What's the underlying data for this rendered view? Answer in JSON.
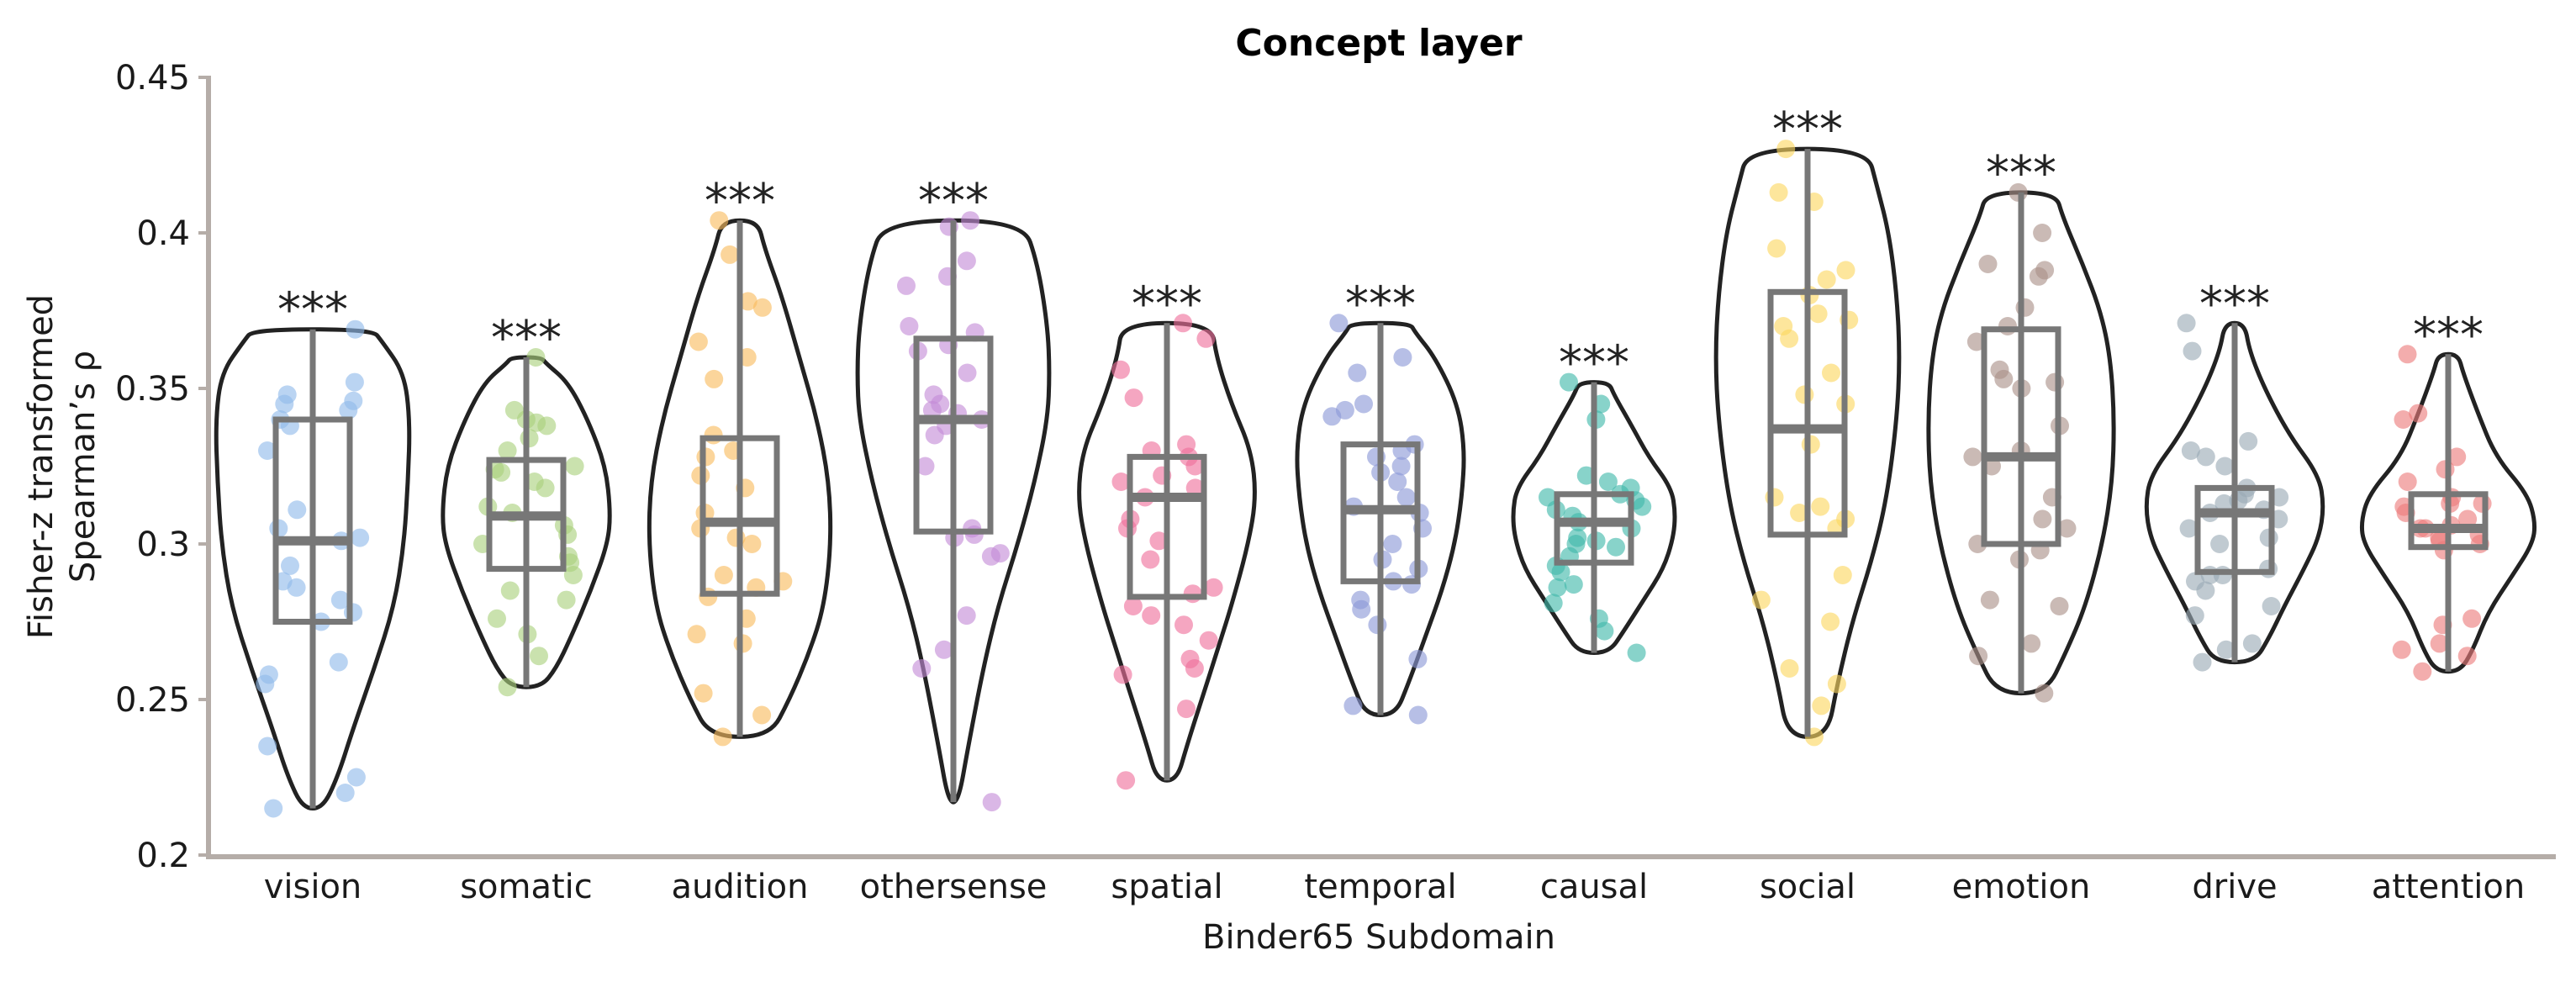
{
  "chart_data": {
    "type": "violin",
    "title": "Concept layer",
    "xlabel": "Binder65 Subdomain",
    "ylabel_line1": "Fisher-z transformed",
    "ylabel_line2": "Spearman’s ρ",
    "ylim": [
      0.2,
      0.45
    ],
    "yticks": [
      0.2,
      0.25,
      0.3,
      0.35,
      0.4,
      0.45
    ],
    "ytick_labels": [
      "0.2",
      "0.25",
      "0.3",
      "0.35",
      "0.4",
      "0.45"
    ],
    "grid": false,
    "categories": [
      {
        "name": "vision",
        "color": "#8fb9ea",
        "sig": "***",
        "min": 0.215,
        "max": 0.369,
        "q1": 0.275,
        "median": 0.301,
        "q3": 0.34,
        "profile": [
          [
            0.215,
            0.1
          ],
          [
            0.225,
            0.25
          ],
          [
            0.24,
            0.4
          ],
          [
            0.26,
            0.62
          ],
          [
            0.28,
            0.82
          ],
          [
            0.3,
            0.92
          ],
          [
            0.32,
            0.96
          ],
          [
            0.34,
            0.98
          ],
          [
            0.355,
            0.92
          ],
          [
            0.365,
            0.7
          ],
          [
            0.369,
            0.6
          ]
        ],
        "points": [
          0.215,
          0.22,
          0.225,
          0.235,
          0.255,
          0.258,
          0.262,
          0.275,
          0.278,
          0.282,
          0.286,
          0.288,
          0.293,
          0.301,
          0.302,
          0.305,
          0.311,
          0.33,
          0.338,
          0.34,
          0.343,
          0.345,
          0.346,
          0.348,
          0.352,
          0.369
        ]
      },
      {
        "name": "somatic",
        "color": "#a9d17c",
        "sig": "***",
        "min": 0.254,
        "max": 0.36,
        "q1": 0.292,
        "median": 0.309,
        "q3": 0.327,
        "profile": [
          [
            0.254,
            0.15
          ],
          [
            0.26,
            0.3
          ],
          [
            0.27,
            0.45
          ],
          [
            0.285,
            0.65
          ],
          [
            0.3,
            0.82
          ],
          [
            0.31,
            0.85
          ],
          [
            0.325,
            0.8
          ],
          [
            0.34,
            0.62
          ],
          [
            0.352,
            0.42
          ],
          [
            0.358,
            0.2
          ],
          [
            0.36,
            0.15
          ]
        ],
        "points": [
          0.254,
          0.264,
          0.271,
          0.276,
          0.282,
          0.285,
          0.29,
          0.294,
          0.296,
          0.3,
          0.303,
          0.306,
          0.31,
          0.312,
          0.318,
          0.32,
          0.323,
          0.324,
          0.325,
          0.33,
          0.334,
          0.338,
          0.339,
          0.34,
          0.343,
          0.36
        ]
      },
      {
        "name": "audition",
        "color": "#f9bb5e",
        "sig": "***",
        "min": 0.238,
        "max": 0.404,
        "q1": 0.284,
        "median": 0.307,
        "q3": 0.334,
        "profile": [
          [
            0.238,
            0.3
          ],
          [
            0.25,
            0.5
          ],
          [
            0.265,
            0.7
          ],
          [
            0.28,
            0.85
          ],
          [
            0.3,
            0.92
          ],
          [
            0.32,
            0.9
          ],
          [
            0.34,
            0.78
          ],
          [
            0.36,
            0.6
          ],
          [
            0.38,
            0.42
          ],
          [
            0.395,
            0.25
          ],
          [
            0.404,
            0.18
          ]
        ],
        "points": [
          0.238,
          0.245,
          0.252,
          0.268,
          0.271,
          0.276,
          0.283,
          0.286,
          0.288,
          0.29,
          0.3,
          0.302,
          0.305,
          0.31,
          0.318,
          0.322,
          0.328,
          0.33,
          0.335,
          0.353,
          0.36,
          0.365,
          0.376,
          0.378,
          0.393,
          0.404
        ]
      },
      {
        "name": "othersense",
        "color": "#c38ad6",
        "sig": "***",
        "min": 0.217,
        "max": 0.404,
        "q1": 0.304,
        "median": 0.34,
        "q3": 0.366,
        "profile": [
          [
            0.217,
            0.05
          ],
          [
            0.235,
            0.15
          ],
          [
            0.26,
            0.3
          ],
          [
            0.28,
            0.45
          ],
          [
            0.3,
            0.65
          ],
          [
            0.32,
            0.82
          ],
          [
            0.34,
            0.95
          ],
          [
            0.355,
            0.97
          ],
          [
            0.37,
            0.95
          ],
          [
            0.39,
            0.85
          ],
          [
            0.404,
            0.7
          ]
        ],
        "points": [
          0.217,
          0.26,
          0.266,
          0.277,
          0.296,
          0.297,
          0.302,
          0.303,
          0.305,
          0.325,
          0.335,
          0.338,
          0.34,
          0.342,
          0.343,
          0.345,
          0.348,
          0.355,
          0.362,
          0.364,
          0.368,
          0.37,
          0.383,
          0.386,
          0.391,
          0.402,
          0.404
        ]
      },
      {
        "name": "spatial",
        "color": "#ef6f9b",
        "sig": "***",
        "min": 0.224,
        "max": 0.371,
        "q1": 0.283,
        "median": 0.315,
        "q3": 0.328,
        "profile": [
          [
            0.224,
            0.1
          ],
          [
            0.235,
            0.2
          ],
          [
            0.25,
            0.35
          ],
          [
            0.265,
            0.5
          ],
          [
            0.28,
            0.65
          ],
          [
            0.3,
            0.82
          ],
          [
            0.315,
            0.9
          ],
          [
            0.33,
            0.85
          ],
          [
            0.345,
            0.65
          ],
          [
            0.36,
            0.5
          ],
          [
            0.371,
            0.45
          ]
        ],
        "points": [
          0.224,
          0.247,
          0.258,
          0.26,
          0.263,
          0.269,
          0.274,
          0.277,
          0.28,
          0.284,
          0.286,
          0.295,
          0.301,
          0.305,
          0.308,
          0.315,
          0.318,
          0.32,
          0.322,
          0.325,
          0.328,
          0.33,
          0.332,
          0.347,
          0.356,
          0.366,
          0.371
        ]
      },
      {
        "name": "temporal",
        "color": "#8b97d6",
        "sig": "***",
        "min": 0.245,
        "max": 0.371,
        "q1": 0.288,
        "median": 0.311,
        "q3": 0.332,
        "profile": [
          [
            0.245,
            0.15
          ],
          [
            0.255,
            0.28
          ],
          [
            0.27,
            0.45
          ],
          [
            0.285,
            0.62
          ],
          [
            0.3,
            0.75
          ],
          [
            0.315,
            0.82
          ],
          [
            0.33,
            0.85
          ],
          [
            0.345,
            0.78
          ],
          [
            0.36,
            0.55
          ],
          [
            0.368,
            0.35
          ],
          [
            0.371,
            0.3
          ]
        ],
        "points": [
          0.245,
          0.248,
          0.263,
          0.274,
          0.279,
          0.282,
          0.287,
          0.288,
          0.292,
          0.295,
          0.3,
          0.305,
          0.31,
          0.312,
          0.315,
          0.32,
          0.323,
          0.325,
          0.328,
          0.33,
          0.332,
          0.341,
          0.343,
          0.345,
          0.355,
          0.36,
          0.371
        ]
      },
      {
        "name": "causal",
        "color": "#3fb8aa",
        "sig": "***",
        "min": 0.265,
        "max": 0.352,
        "q1": 0.294,
        "median": 0.307,
        "q3": 0.316,
        "profile": [
          [
            0.265,
            0.15
          ],
          [
            0.272,
            0.3
          ],
          [
            0.282,
            0.5
          ],
          [
            0.292,
            0.7
          ],
          [
            0.302,
            0.8
          ],
          [
            0.31,
            0.82
          ],
          [
            0.318,
            0.78
          ],
          [
            0.328,
            0.55
          ],
          [
            0.338,
            0.38
          ],
          [
            0.348,
            0.2
          ],
          [
            0.352,
            0.15
          ]
        ],
        "points": [
          0.265,
          0.272,
          0.276,
          0.281,
          0.286,
          0.287,
          0.291,
          0.293,
          0.296,
          0.299,
          0.3,
          0.301,
          0.302,
          0.305,
          0.307,
          0.309,
          0.311,
          0.312,
          0.314,
          0.315,
          0.316,
          0.318,
          0.32,
          0.322,
          0.34,
          0.345,
          0.352
        ]
      },
      {
        "name": "social",
        "color": "#fbd65f",
        "sig": "***",
        "min": 0.238,
        "max": 0.427,
        "q1": 0.303,
        "median": 0.337,
        "q3": 0.381,
        "profile": [
          [
            0.238,
            0.2
          ],
          [
            0.255,
            0.3
          ],
          [
            0.275,
            0.45
          ],
          [
            0.295,
            0.65
          ],
          [
            0.315,
            0.8
          ],
          [
            0.34,
            0.9
          ],
          [
            0.36,
            0.93
          ],
          [
            0.38,
            0.9
          ],
          [
            0.4,
            0.82
          ],
          [
            0.415,
            0.7
          ],
          [
            0.427,
            0.6
          ]
        ],
        "points": [
          0.238,
          0.248,
          0.255,
          0.26,
          0.275,
          0.282,
          0.29,
          0.305,
          0.308,
          0.31,
          0.312,
          0.315,
          0.332,
          0.345,
          0.348,
          0.355,
          0.366,
          0.37,
          0.372,
          0.374,
          0.38,
          0.385,
          0.388,
          0.395,
          0.41,
          0.413,
          0.427
        ]
      },
      {
        "name": "emotion",
        "color": "#a98f88",
        "sig": "***",
        "min": 0.252,
        "max": 0.413,
        "q1": 0.3,
        "median": 0.328,
        "q3": 0.369,
        "profile": [
          [
            0.252,
            0.25
          ],
          [
            0.265,
            0.45
          ],
          [
            0.28,
            0.65
          ],
          [
            0.3,
            0.82
          ],
          [
            0.32,
            0.92
          ],
          [
            0.34,
            0.94
          ],
          [
            0.36,
            0.9
          ],
          [
            0.375,
            0.8
          ],
          [
            0.39,
            0.62
          ],
          [
            0.405,
            0.42
          ],
          [
            0.413,
            0.35
          ]
        ],
        "points": [
          0.252,
          0.264,
          0.268,
          0.28,
          0.282,
          0.295,
          0.298,
          0.3,
          0.305,
          0.308,
          0.315,
          0.325,
          0.328,
          0.33,
          0.338,
          0.35,
          0.352,
          0.353,
          0.356,
          0.365,
          0.37,
          0.376,
          0.386,
          0.388,
          0.39,
          0.4,
          0.413
        ]
      },
      {
        "name": "drive",
        "color": "#9aaab5",
        "sig": "***",
        "min": 0.262,
        "max": 0.371,
        "q1": 0.291,
        "median": 0.31,
        "q3": 0.318,
        "profile": [
          [
            0.262,
            0.2
          ],
          [
            0.27,
            0.35
          ],
          [
            0.28,
            0.5
          ],
          [
            0.292,
            0.7
          ],
          [
            0.302,
            0.85
          ],
          [
            0.312,
            0.9
          ],
          [
            0.322,
            0.85
          ],
          [
            0.335,
            0.55
          ],
          [
            0.35,
            0.3
          ],
          [
            0.362,
            0.15
          ],
          [
            0.371,
            0.1
          ]
        ],
        "points": [
          0.262,
          0.266,
          0.268,
          0.277,
          0.28,
          0.285,
          0.288,
          0.29,
          0.29,
          0.292,
          0.3,
          0.302,
          0.305,
          0.308,
          0.31,
          0.311,
          0.313,
          0.314,
          0.315,
          0.316,
          0.318,
          0.325,
          0.328,
          0.33,
          0.333,
          0.362,
          0.371
        ]
      },
      {
        "name": "attention",
        "color": "#ec7b7b",
        "sig": "***",
        "min": 0.259,
        "max": 0.361,
        "q1": 0.299,
        "median": 0.305,
        "q3": 0.316,
        "profile": [
          [
            0.259,
            0.12
          ],
          [
            0.266,
            0.25
          ],
          [
            0.278,
            0.4
          ],
          [
            0.29,
            0.65
          ],
          [
            0.3,
            0.85
          ],
          [
            0.307,
            0.88
          ],
          [
            0.316,
            0.8
          ],
          [
            0.328,
            0.48
          ],
          [
            0.342,
            0.3
          ],
          [
            0.355,
            0.15
          ],
          [
            0.361,
            0.1
          ]
        ],
        "points": [
          0.259,
          0.264,
          0.266,
          0.268,
          0.274,
          0.276,
          0.298,
          0.3,
          0.301,
          0.302,
          0.303,
          0.305,
          0.305,
          0.306,
          0.308,
          0.31,
          0.312,
          0.313,
          0.313,
          0.315,
          0.32,
          0.324,
          0.328,
          0.34,
          0.342,
          0.361
        ]
      }
    ]
  }
}
